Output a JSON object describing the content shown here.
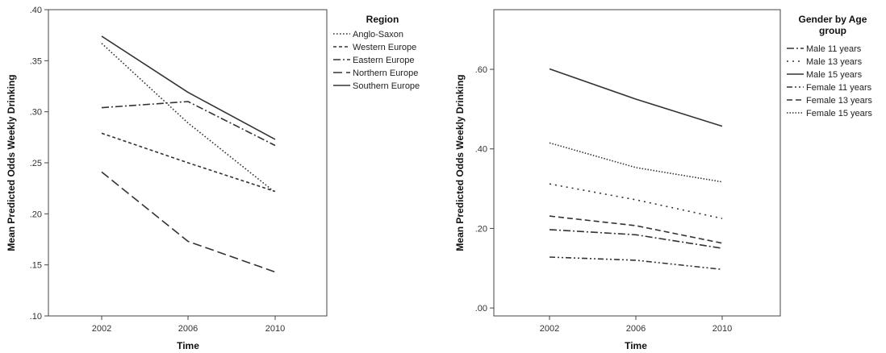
{
  "chart_data": [
    {
      "type": "line",
      "x": [
        "2002",
        "2006",
        "2010"
      ],
      "xlabel": "Time",
      "ylabel": "Mean Predicted Odds Weekly Drinking",
      "ylim": [
        0.1,
        0.4
      ],
      "yticks": [
        {
          "value": 0.1,
          "label": ".10"
        },
        {
          "value": 0.15,
          "label": ".15"
        },
        {
          "value": 0.2,
          "label": ".20"
        },
        {
          "value": 0.25,
          "label": ".25"
        },
        {
          "value": 0.3,
          "label": ".30"
        },
        {
          "value": 0.35,
          "label": ".35"
        },
        {
          "value": 0.4,
          "label": ".40"
        }
      ],
      "grid": false,
      "legend_title": "Region",
      "legend_position": "right",
      "series": [
        {
          "name": "Anglo-Saxon",
          "dash": "dotted",
          "values": [
            0.367,
            0.289,
            0.221
          ]
        },
        {
          "name": "Western Europe",
          "dash": "short-dash",
          "values": [
            0.279,
            0.25,
            0.222
          ]
        },
        {
          "name": "Eastern Europe",
          "dash": "dash-dot",
          "values": [
            0.304,
            0.31,
            0.267
          ]
        },
        {
          "name": "Northern Europe",
          "dash": "long-dash",
          "values": [
            0.241,
            0.173,
            0.143
          ]
        },
        {
          "name": "Southern Europe",
          "dash": "solid",
          "values": [
            0.374,
            0.319,
            0.273
          ]
        }
      ]
    },
    {
      "type": "line",
      "x": [
        "2002",
        "2006",
        "2010"
      ],
      "xlabel": "Time",
      "ylabel": "Mean Predicted Odds Weekly Drinking",
      "ylim": [
        -0.02,
        0.75
      ],
      "yticks": [
        {
          "value": 0.0,
          "label": ".00"
        },
        {
          "value": 0.2,
          "label": ".20"
        },
        {
          "value": 0.4,
          "label": ".40"
        },
        {
          "value": 0.6,
          "label": ".60"
        }
      ],
      "grid": false,
      "legend_title": "Gender by Age group",
      "legend_title_lines": [
        "Gender by Age",
        "group"
      ],
      "legend_position": "right",
      "series": [
        {
          "name": "Male 11 years",
          "dash": "dash-dot",
          "values": [
            0.197,
            0.184,
            0.15
          ]
        },
        {
          "name": "Male 13 years",
          "dash": "sparse-dot",
          "values": [
            0.312,
            0.272,
            0.225
          ]
        },
        {
          "name": "Male 15 years",
          "dash": "solid",
          "values": [
            0.601,
            0.525,
            0.457
          ]
        },
        {
          "name": "Female 11 years",
          "dash": "dash-dot-dot",
          "values": [
            0.128,
            0.12,
            0.097
          ]
        },
        {
          "name": "Female 13 years",
          "dash": "medium-dash",
          "values": [
            0.231,
            0.207,
            0.163
          ]
        },
        {
          "name": "Female 15 years",
          "dash": "dense-dot",
          "values": [
            0.415,
            0.353,
            0.317
          ]
        }
      ]
    }
  ]
}
